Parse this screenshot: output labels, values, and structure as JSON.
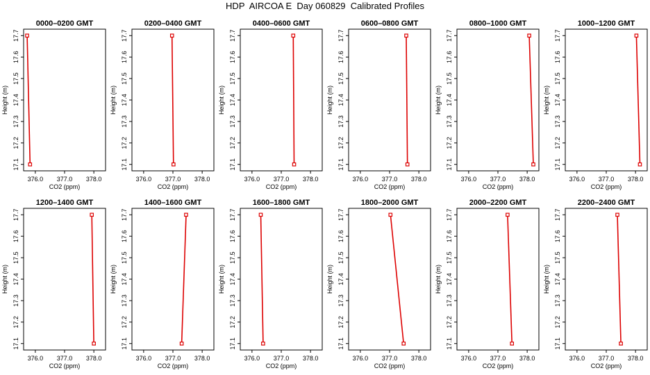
{
  "title": "HDP  AIRCOA E  Day 060829  Calibrated Profiles",
  "style": {
    "line_color": "#dd0000",
    "marker_color": "#dd0000",
    "axis_color": "#000000"
  },
  "chart_data": [
    {
      "type": "line",
      "title": "0000–0200 GMT",
      "xlabel": "CO2 (ppm)",
      "ylabel": "Height (m)",
      "xlim": [
        375.6,
        378.4
      ],
      "ylim": [
        17.07,
        17.73
      ],
      "xticks": [
        "376.0",
        "377.0",
        "378.0"
      ],
      "yticks": [
        "17.1",
        "17.2",
        "17.3",
        "17.4",
        "17.5",
        "17.6",
        "17.7"
      ],
      "x": [
        375.72,
        375.82
      ],
      "y": [
        17.7,
        17.1
      ]
    },
    {
      "type": "line",
      "title": "0200–0400 GMT",
      "xlabel": "CO2 (ppm)",
      "ylabel": "Height (m)",
      "xlim": [
        375.6,
        378.4
      ],
      "ylim": [
        17.07,
        17.73
      ],
      "xticks": [
        "376.0",
        "377.0",
        "378.0"
      ],
      "yticks": [
        "17.1",
        "17.2",
        "17.3",
        "17.4",
        "17.5",
        "17.6",
        "17.7"
      ],
      "x": [
        376.97,
        377.02
      ],
      "y": [
        17.7,
        17.1
      ]
    },
    {
      "type": "line",
      "title": "0400–0600 GMT",
      "xlabel": "CO2 (ppm)",
      "ylabel": "Height (m)",
      "xlim": [
        375.6,
        378.4
      ],
      "ylim": [
        17.07,
        17.73
      ],
      "xticks": [
        "376.0",
        "377.0",
        "378.0"
      ],
      "yticks": [
        "17.1",
        "17.2",
        "17.3",
        "17.4",
        "17.5",
        "17.6",
        "17.7"
      ],
      "x": [
        377.41,
        377.44
      ],
      "y": [
        17.7,
        17.1
      ]
    },
    {
      "type": "line",
      "title": "0600–0800 GMT",
      "xlabel": "CO2 (ppm)",
      "ylabel": "Height (m)",
      "xlim": [
        375.6,
        378.4
      ],
      "ylim": [
        17.07,
        17.73
      ],
      "xticks": [
        "376.0",
        "377.0",
        "378.0"
      ],
      "yticks": [
        "17.1",
        "17.2",
        "17.3",
        "17.4",
        "17.5",
        "17.6",
        "17.7"
      ],
      "x": [
        377.57,
        377.61
      ],
      "y": [
        17.7,
        17.1
      ]
    },
    {
      "type": "line",
      "title": "0800–1000 GMT",
      "xlabel": "CO2 (ppm)",
      "ylabel": "Height (m)",
      "xlim": [
        375.6,
        378.4
      ],
      "ylim": [
        17.07,
        17.73
      ],
      "xticks": [
        "376.0",
        "377.0",
        "378.0"
      ],
      "yticks": [
        "17.1",
        "17.2",
        "17.3",
        "17.4",
        "17.5",
        "17.6",
        "17.7"
      ],
      "x": [
        378.07,
        378.21
      ],
      "y": [
        17.7,
        17.1
      ]
    },
    {
      "type": "line",
      "title": "1000–1200 GMT",
      "xlabel": "CO2 (ppm)",
      "ylabel": "Height (m)",
      "xlim": [
        375.6,
        378.4
      ],
      "ylim": [
        17.07,
        17.73
      ],
      "xticks": [
        "376.0",
        "377.0",
        "378.0"
      ],
      "yticks": [
        "17.1",
        "17.2",
        "17.3",
        "17.4",
        "17.5",
        "17.6",
        "17.7"
      ],
      "x": [
        378.03,
        378.15
      ],
      "y": [
        17.7,
        17.1
      ]
    },
    {
      "type": "line",
      "title": "1200–1400 GMT",
      "xlabel": "CO2 (ppm)",
      "ylabel": "Height (m)",
      "xlim": [
        375.6,
        378.4
      ],
      "ylim": [
        17.07,
        17.73
      ],
      "xticks": [
        "376.0",
        "377.0",
        "378.0"
      ],
      "yticks": [
        "17.1",
        "17.2",
        "17.3",
        "17.4",
        "17.5",
        "17.6",
        "17.7"
      ],
      "x": [
        377.93,
        378.0
      ],
      "y": [
        17.7,
        17.1
      ]
    },
    {
      "type": "line",
      "title": "1400–1600 GMT",
      "xlabel": "CO2 (ppm)",
      "ylabel": "Height (m)",
      "xlim": [
        375.6,
        378.4
      ],
      "ylim": [
        17.07,
        17.73
      ],
      "xticks": [
        "376.0",
        "377.0",
        "378.0"
      ],
      "yticks": [
        "17.1",
        "17.2",
        "17.3",
        "17.4",
        "17.5",
        "17.6",
        "17.7"
      ],
      "x": [
        377.45,
        377.3
      ],
      "y": [
        17.7,
        17.1
      ]
    },
    {
      "type": "line",
      "title": "1600–1800 GMT",
      "xlabel": "CO2 (ppm)",
      "ylabel": "Height (m)",
      "xlim": [
        375.6,
        378.4
      ],
      "ylim": [
        17.07,
        17.73
      ],
      "xticks": [
        "376.0",
        "377.0",
        "378.0"
      ],
      "yticks": [
        "17.1",
        "17.2",
        "17.3",
        "17.4",
        "17.5",
        "17.6",
        "17.7"
      ],
      "x": [
        376.3,
        376.38
      ],
      "y": [
        17.7,
        17.1
      ]
    },
    {
      "type": "line",
      "title": "1800–2000 GMT",
      "xlabel": "CO2 (ppm)",
      "ylabel": "Height (m)",
      "xlim": [
        375.6,
        378.4
      ],
      "ylim": [
        17.07,
        17.73
      ],
      "xticks": [
        "376.0",
        "377.0",
        "378.0"
      ],
      "yticks": [
        "17.1",
        "17.2",
        "17.3",
        "17.4",
        "17.5",
        "17.6",
        "17.7"
      ],
      "x": [
        377.03,
        377.48
      ],
      "y": [
        17.7,
        17.1
      ]
    },
    {
      "type": "line",
      "title": "2000–2200 GMT",
      "xlabel": "CO2 (ppm)",
      "ylabel": "Height (m)",
      "xlim": [
        375.6,
        378.4
      ],
      "ylim": [
        17.07,
        17.73
      ],
      "xticks": [
        "376.0",
        "377.0",
        "378.0"
      ],
      "yticks": [
        "17.1",
        "17.2",
        "17.3",
        "17.4",
        "17.5",
        "17.6",
        "17.7"
      ],
      "x": [
        377.33,
        377.48
      ],
      "y": [
        17.7,
        17.1
      ]
    },
    {
      "type": "line",
      "title": "2200–2400 GMT",
      "xlabel": "CO2 (ppm)",
      "ylabel": "Height (m)",
      "xlim": [
        375.6,
        378.4
      ],
      "ylim": [
        17.07,
        17.73
      ],
      "xticks": [
        "376.0",
        "377.0",
        "378.0"
      ],
      "yticks": [
        "17.1",
        "17.2",
        "17.3",
        "17.4",
        "17.5",
        "17.6",
        "17.7"
      ],
      "x": [
        377.38,
        377.5
      ],
      "y": [
        17.7,
        17.1
      ]
    }
  ]
}
